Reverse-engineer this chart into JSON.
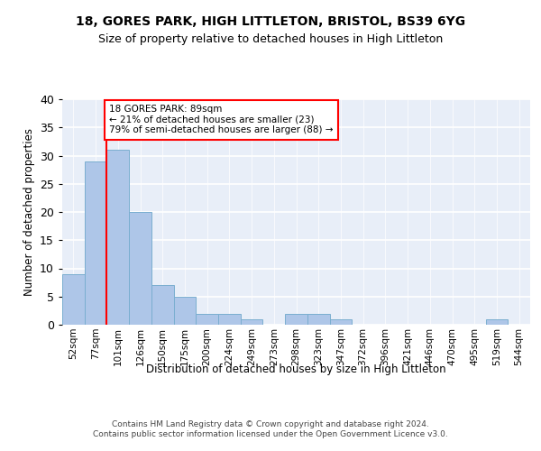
{
  "title1": "18, GORES PARK, HIGH LITTLETON, BRISTOL, BS39 6YG",
  "title2": "Size of property relative to detached houses in High Littleton",
  "xlabel": "Distribution of detached houses by size in High Littleton",
  "ylabel": "Number of detached properties",
  "categories": [
    "52sqm",
    "77sqm",
    "101sqm",
    "126sqm",
    "150sqm",
    "175sqm",
    "200sqm",
    "224sqm",
    "249sqm",
    "273sqm",
    "298sqm",
    "323sqm",
    "347sqm",
    "372sqm",
    "396sqm",
    "421sqm",
    "446sqm",
    "470sqm",
    "495sqm",
    "519sqm",
    "544sqm"
  ],
  "values": [
    9,
    29,
    31,
    20,
    7,
    5,
    2,
    2,
    1,
    0,
    2,
    2,
    1,
    0,
    0,
    0,
    0,
    0,
    0,
    1,
    0
  ],
  "bar_color": "#aec6e8",
  "bar_edge_color": "#7aaed0",
  "vline_x_index": 1.5,
  "annotation_text_line1": "18 GORES PARK: 89sqm",
  "annotation_text_line2": "← 21% of detached houses are smaller (23)",
  "annotation_text_line3": "79% of semi-detached houses are larger (88) →",
  "annotation_box_color": "white",
  "annotation_box_edge_color": "red",
  "vline_color": "red",
  "ylim": [
    0,
    40
  ],
  "yticks": [
    0,
    5,
    10,
    15,
    20,
    25,
    30,
    35,
    40
  ],
  "plot_bg_color": "#e8eef8",
  "footer1": "Contains HM Land Registry data © Crown copyright and database right 2024.",
  "footer2": "Contains public sector information licensed under the Open Government Licence v3.0."
}
